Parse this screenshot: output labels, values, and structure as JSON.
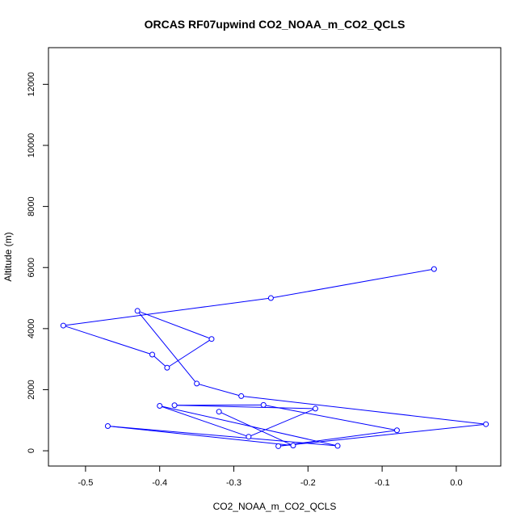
{
  "chart_data": {
    "type": "line",
    "title": "ORCAS RF07upwind CO2_NOAA_m_CO2_QCLS",
    "xlabel": "CO2_NOAA_m_CO2_QCLS",
    "ylabel": "Altitude (m)",
    "xlim": [
      -0.55,
      0.06
    ],
    "ylim": [
      -500,
      13200
    ],
    "x_ticks": [
      -0.5,
      -0.4,
      -0.3,
      -0.2,
      -0.1,
      0.0
    ],
    "x_tick_labels": [
      "-0.5",
      "-0.4",
      "-0.3",
      "-0.2",
      "-0.1",
      "0.0"
    ],
    "y_ticks": [
      0,
      2000,
      4000,
      6000,
      8000,
      10000,
      12000
    ],
    "y_tick_labels": [
      "0",
      "2000",
      "4000",
      "6000",
      "8000",
      "10000",
      "12000"
    ],
    "grid": false,
    "series": [
      {
        "color": "#0000ff",
        "marker": "open-circle",
        "points": [
          {
            "x": -0.03,
            "y": 5950
          },
          {
            "x": -0.25,
            "y": 5000
          },
          {
            "x": -0.53,
            "y": 4100
          },
          {
            "x": -0.41,
            "y": 3150
          },
          {
            "x": -0.39,
            "y": 2720
          },
          {
            "x": -0.33,
            "y": 3660
          },
          {
            "x": -0.43,
            "y": 4580
          },
          {
            "x": -0.35,
            "y": 2200
          },
          {
            "x": -0.29,
            "y": 1790
          },
          {
            "x": 0.04,
            "y": 870
          },
          {
            "x": -0.24,
            "y": 150
          },
          {
            "x": -0.08,
            "y": 670
          },
          {
            "x": -0.26,
            "y": 1500
          },
          {
            "x": -0.38,
            "y": 1490
          },
          {
            "x": -0.19,
            "y": 1380
          },
          {
            "x": -0.28,
            "y": 460
          },
          {
            "x": -0.4,
            "y": 1470
          },
          {
            "x": -0.16,
            "y": 160
          },
          {
            "x": -0.47,
            "y": 810
          },
          {
            "x": -0.22,
            "y": 170
          },
          {
            "x": -0.32,
            "y": 1280
          }
        ]
      }
    ]
  }
}
